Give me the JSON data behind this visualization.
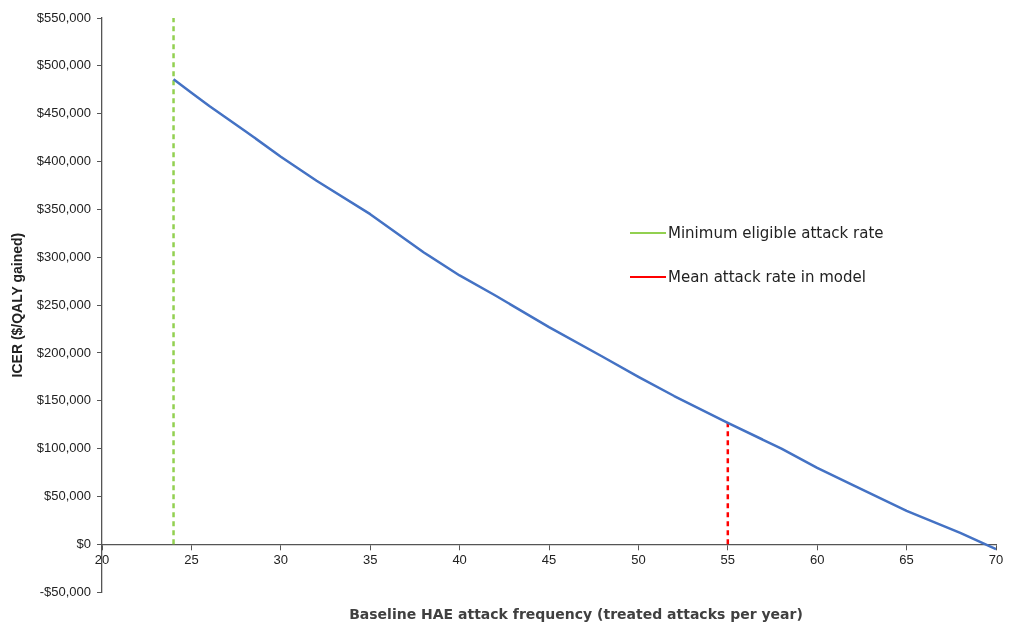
{
  "chart_data": {
    "type": "line",
    "xlabel": "Baseline HAE attack frequency (treated attacks per year)",
    "ylabel": "ICER ($/QALY gained)",
    "xlim": [
      20,
      70
    ],
    "xticks": [
      20,
      25,
      30,
      35,
      40,
      45,
      50,
      55,
      60,
      65,
      70
    ],
    "ylim": [
      -50000,
      550000
    ],
    "yticks": [
      {
        "value": -50000,
        "label": "-$50,000"
      },
      {
        "value": 0,
        "label": "$0"
      },
      {
        "value": 50000,
        "label": "$50,000"
      },
      {
        "value": 100000,
        "label": "$100,000"
      },
      {
        "value": 150000,
        "label": "$150,000"
      },
      {
        "value": 200000,
        "label": "$200,000"
      },
      {
        "value": 250000,
        "label": "$250,000"
      },
      {
        "value": 300000,
        "label": "$300,000"
      },
      {
        "value": 350000,
        "label": "$350,000"
      },
      {
        "value": 400000,
        "label": "$400,000"
      },
      {
        "value": 450000,
        "label": "$450,000"
      },
      {
        "value": 500000,
        "label": "$500,000"
      },
      {
        "value": 550000,
        "label": "$550,000"
      }
    ],
    "grid": false,
    "legend": "right",
    "marker": "none",
    "series": [
      {
        "color": "#4472c4",
        "line_style": "solid",
        "x": [
          24,
          25,
          26,
          28,
          30,
          32,
          35,
          38,
          40,
          42,
          45,
          48,
          50,
          52,
          55,
          58,
          60,
          62,
          65,
          68,
          70
        ],
        "values": [
          486000,
          472000,
          458000,
          432000,
          405000,
          380000,
          345000,
          305000,
          281000,
          260000,
          227000,
          196000,
          175000,
          155000,
          127000,
          100000,
          80000,
          62000,
          35000,
          12000,
          -5000
        ]
      },
      {
        "name": "Minimum eligible attack rate",
        "color": "#92d050",
        "line_style": "dashed",
        "x": [
          24,
          24
        ],
        "values": [
          0,
          550000
        ]
      },
      {
        "name": "Mean attack rate in model",
        "color": "#ff0000",
        "line_style": "dashed",
        "x": [
          55,
          55
        ],
        "values": [
          0,
          127000
        ]
      }
    ]
  }
}
